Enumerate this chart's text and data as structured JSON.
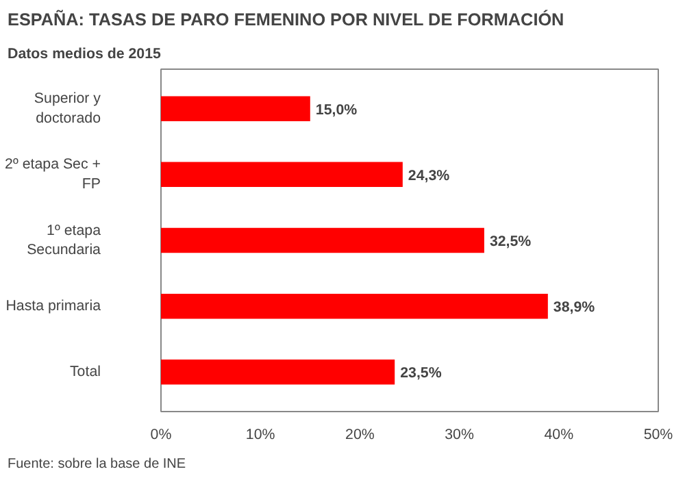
{
  "chart_data": {
    "type": "bar",
    "orientation": "horizontal",
    "title": "ESPAÑA: TASAS DE PARO FEMENINO POR NIVEL DE FORMACIÓN",
    "subtitle": "Datos medios de 2015",
    "categories": [
      "Superior y doctorado",
      "2º etapa Sec + FP",
      "1º etapa Secundaria",
      "Hasta primaria",
      "Total"
    ],
    "values": [
      15.0,
      24.3,
      32.5,
      38.9,
      23.5
    ],
    "value_labels": [
      "15,0%",
      "24,3%",
      "32,5%",
      "38,9%",
      "23,5%"
    ],
    "color": "#ff0000",
    "xlim": [
      0,
      50
    ],
    "xticks": [
      {
        "value": 0,
        "label": "0%"
      },
      {
        "value": 10,
        "label": "10%"
      },
      {
        "value": 20,
        "label": "20%"
      },
      {
        "value": 30,
        "label": "30%"
      },
      {
        "value": 40,
        "label": "40%"
      },
      {
        "value": 50,
        "label": "50%"
      }
    ],
    "grid": false,
    "annotations": [
      "Fuente: sobre la base de INE"
    ]
  }
}
